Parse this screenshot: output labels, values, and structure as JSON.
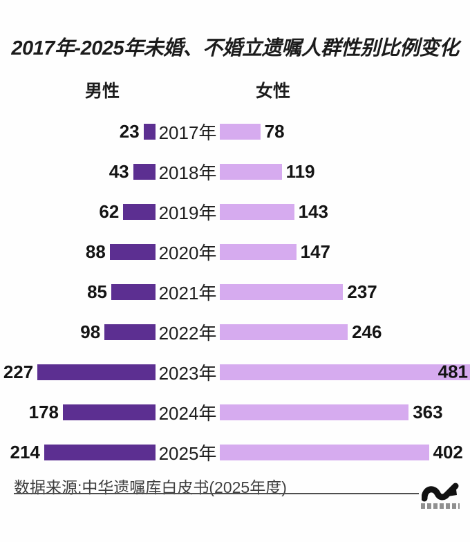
{
  "title": "2017年-2025年未婚、不婚立遗嘱人群性别比例变化",
  "headers": {
    "male": "男性",
    "female": "女性"
  },
  "chart_data": {
    "type": "bar",
    "variant": "diverging-horizontal",
    "title": "2017年-2025年未婚、不婚立遗嘱人群性别比例变化",
    "categories": [
      "2017年",
      "2018年",
      "2019年",
      "2020年",
      "2021年",
      "2022年",
      "2023年",
      "2024年",
      "2025年"
    ],
    "series": [
      {
        "name": "男性",
        "side": "left",
        "color": "#5c2f91",
        "values": [
          23,
          43,
          62,
          88,
          85,
          98,
          227,
          178,
          214
        ]
      },
      {
        "name": "女性",
        "side": "right",
        "color": "#d6abef",
        "values": [
          78,
          119,
          143,
          147,
          237,
          246,
          481,
          363,
          402
        ]
      }
    ],
    "value_labels": "at-bar-ends",
    "axis_range_each_side": [
      0,
      481
    ],
    "grid": false,
    "legend_position": "top"
  },
  "footer": {
    "source": "数据来源:中华遗嘱库白皮书(2025年度)"
  },
  "colors": {
    "male_bar": "#5c2f91",
    "female_bar": "#d6abef",
    "title_text": "#1c1c1c",
    "value_text": "#141414",
    "footer_text": "#3f3f3f",
    "rule": "#4f4f4f",
    "logo": "#111111",
    "background": "#fefefe"
  }
}
